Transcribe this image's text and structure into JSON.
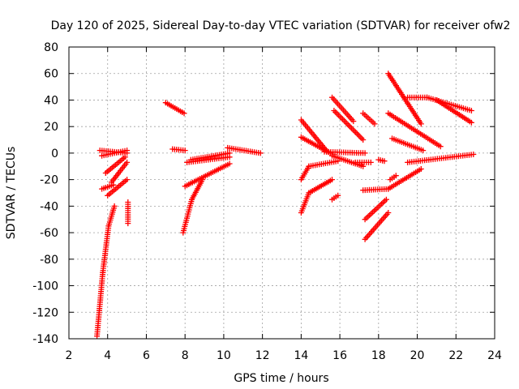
{
  "chart_data": {
    "type": "scatter",
    "title": "Day 120 of 2025, Sidereal Day-to-day VTEC variation (SDTVAR) for receiver ofw2",
    "xlabel": "GPS time / hours",
    "ylabel": "SDTVAR / TECUs",
    "xlim": [
      2,
      24
    ],
    "ylim": [
      -140,
      80
    ],
    "xticks": [
      2,
      4,
      6,
      8,
      10,
      12,
      14,
      16,
      18,
      20,
      22,
      24
    ],
    "yticks": [
      -140,
      -120,
      -100,
      -80,
      -60,
      -40,
      -20,
      0,
      20,
      40,
      60,
      80
    ],
    "grid": true,
    "marker": "+",
    "color": "#ff0000",
    "segments": [
      {
        "x0": 3.45,
        "x1": 3.75,
        "y0": -138,
        "y1": -90
      },
      {
        "x0": 3.75,
        "x1": 4.05,
        "y0": -90,
        "y1": -55
      },
      {
        "x0": 4.05,
        "x1": 4.35,
        "y0": -55,
        "y1": -40
      },
      {
        "x0": 3.6,
        "x1": 5.0,
        "y0": 2,
        "y1": 0
      },
      {
        "x0": 3.7,
        "x1": 5.0,
        "y0": -2,
        "y1": 2
      },
      {
        "x0": 3.9,
        "x1": 4.9,
        "y0": -15,
        "y1": -3
      },
      {
        "x0": 4.0,
        "x1": 5.0,
        "y0": -32,
        "y1": -20
      },
      {
        "x0": 4.2,
        "x1": 5.0,
        "y0": -22,
        "y1": -7
      },
      {
        "x0": 3.7,
        "x1": 4.3,
        "y0": -27,
        "y1": -24
      },
      {
        "x0": 5.05,
        "x1": 5.05,
        "y0": -53,
        "y1": -37
      },
      {
        "x0": 7.0,
        "x1": 7.95,
        "y0": 38,
        "y1": 30
      },
      {
        "x0": 7.35,
        "x1": 8.0,
        "y0": 3,
        "y1": 2
      },
      {
        "x0": 7.9,
        "x1": 8.35,
        "y0": -60,
        "y1": -35
      },
      {
        "x0": 8.35,
        "x1": 8.9,
        "y0": -35,
        "y1": -20
      },
      {
        "x0": 8.0,
        "x1": 10.3,
        "y0": -25,
        "y1": -8
      },
      {
        "x0": 8.1,
        "x1": 10.3,
        "y0": -7,
        "y1": -3
      },
      {
        "x0": 8.3,
        "x1": 10.3,
        "y0": -5,
        "y1": 0
      },
      {
        "x0": 10.2,
        "x1": 11.9,
        "y0": 4,
        "y1": 0
      },
      {
        "x0": 14.0,
        "x1": 14.4,
        "y0": -45,
        "y1": -30
      },
      {
        "x0": 14.4,
        "x1": 15.6,
        "y0": -30,
        "y1": -20
      },
      {
        "x0": 14.0,
        "x1": 14.4,
        "y0": -20,
        "y1": -10
      },
      {
        "x0": 14.4,
        "x1": 15.9,
        "y0": -10,
        "y1": -6
      },
      {
        "x0": 14.0,
        "x1": 15.3,
        "y0": 25,
        "y1": 2
      },
      {
        "x0": 14.0,
        "x1": 15.5,
        "y0": 12,
        "y1": 0
      },
      {
        "x0": 15.2,
        "x1": 17.3,
        "y0": 1,
        "y1": 0
      },
      {
        "x0": 15.6,
        "x1": 17.2,
        "y0": -2,
        "y1": -10
      },
      {
        "x0": 15.6,
        "x1": 16.7,
        "y0": 42,
        "y1": 24
      },
      {
        "x0": 15.7,
        "x1": 17.2,
        "y0": 32,
        "y1": 10
      },
      {
        "x0": 15.6,
        "x1": 15.9,
        "y0": -35,
        "y1": -32
      },
      {
        "x0": 16.8,
        "x1": 17.6,
        "y0": -7,
        "y1": -7
      },
      {
        "x0": 17.2,
        "x1": 17.8,
        "y0": 30,
        "y1": 22
      },
      {
        "x0": 17.2,
        "x1": 18.5,
        "y0": -28,
        "y1": -27
      },
      {
        "x0": 17.3,
        "x1": 18.5,
        "y0": -65,
        "y1": -45
      },
      {
        "x0": 17.3,
        "x1": 18.4,
        "y0": -50,
        "y1": -35
      },
      {
        "x0": 18.0,
        "x1": 18.3,
        "y0": -5,
        "y1": -6
      },
      {
        "x0": 18.5,
        "x1": 20.2,
        "y0": -27,
        "y1": -12
      },
      {
        "x0": 18.6,
        "x1": 18.9,
        "y0": -20,
        "y1": -17
      },
      {
        "x0": 18.5,
        "x1": 20.2,
        "y0": 60,
        "y1": 22
      },
      {
        "x0": 18.5,
        "x1": 21.2,
        "y0": 30,
        "y1": 5
      },
      {
        "x0": 18.7,
        "x1": 20.3,
        "y0": 11,
        "y1": 2
      },
      {
        "x0": 19.5,
        "x1": 20.5,
        "y0": 42,
        "y1": 42
      },
      {
        "x0": 20.5,
        "x1": 22.8,
        "y0": 42,
        "y1": 32
      },
      {
        "x0": 21.0,
        "x1": 22.8,
        "y0": 40,
        "y1": 23
      },
      {
        "x0": 19.5,
        "x1": 22.9,
        "y0": -7,
        "y1": -1
      }
    ]
  }
}
